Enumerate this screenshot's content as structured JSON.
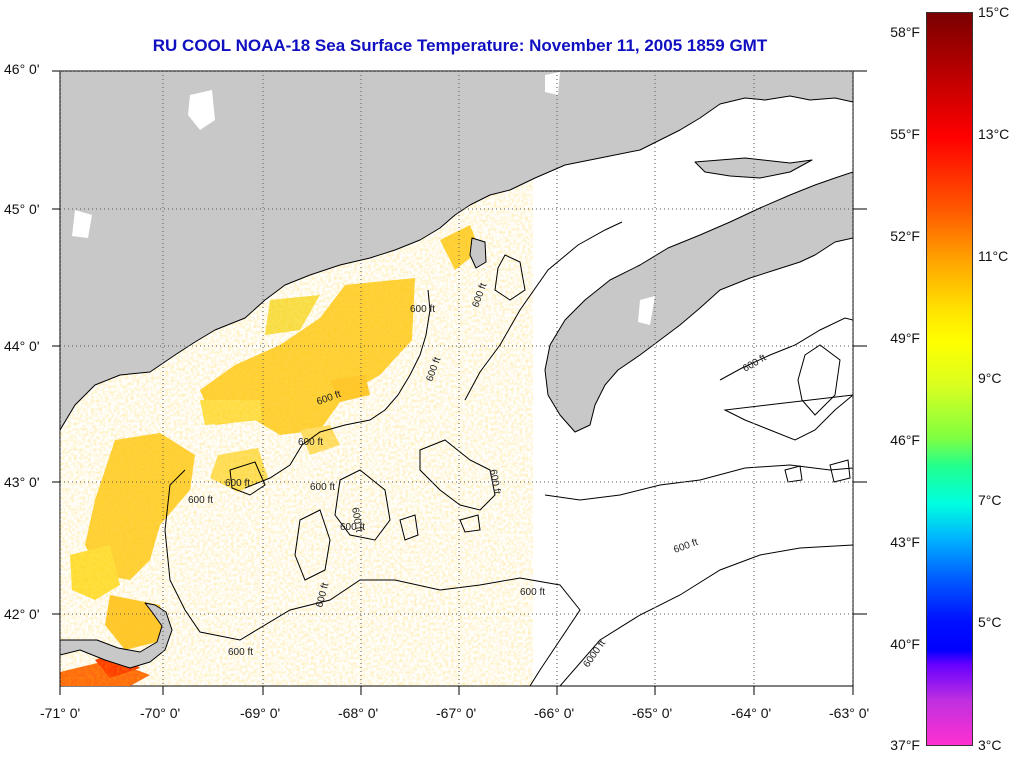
{
  "title": "RU COOL  NOAA-18  Sea Surface Temperature:  November 11, 2005 1859 GMT",
  "map": {
    "lon_labels": [
      "-71° 0'",
      "-70° 0'",
      "-69° 0'",
      "-68° 0'",
      "-67° 0'",
      "-66° 0'",
      "-65° 0'",
      "-64° 0'",
      "-63° 0'"
    ],
    "lat_labels": [
      "46° 0'",
      "45° 0'",
      "44° 0'",
      "43° 0'",
      "42° 0'"
    ],
    "contour_labels": [
      "600 ft",
      "600 ft",
      "600 ft",
      "600 ft",
      "600 ft",
      "600 ft",
      "600 ft",
      "600 ft",
      "600 ft",
      "600 ft",
      "600 ft",
      "600 ft",
      "600 ft",
      "600 ft",
      "600 ft",
      "600 ft",
      "6000 ft"
    ]
  },
  "colorbar": {
    "celsius_labels": [
      "15°C",
      "13°C",
      "11°C",
      "9°C",
      "7°C",
      "5°C",
      "3°C"
    ],
    "fahrenheit_labels": [
      "58°F",
      "55°F",
      "52°F",
      "49°F",
      "46°F",
      "43°F",
      "40°F",
      "37°F"
    ],
    "min_c": 3,
    "max_c": 15
  },
  "colors": {
    "land": "#c8c8c8",
    "title": "#1010c0",
    "sst_warm": "#ffd23c",
    "sst_hot": "#ff5a10"
  }
}
